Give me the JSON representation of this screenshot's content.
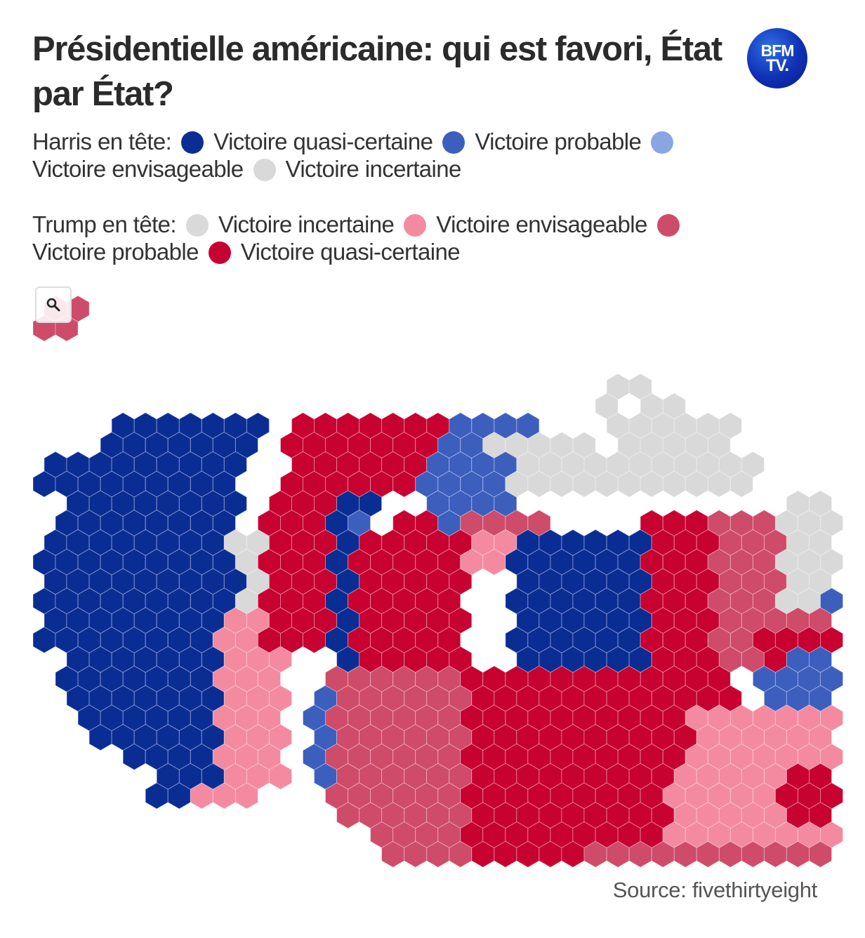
{
  "header": {
    "title": "Présidentielle américaine: qui est favori, État par État?",
    "logo_line1": "BFM",
    "logo_line2": "TV."
  },
  "legend": {
    "harris": {
      "lead_label": "Harris en tête:",
      "items": [
        {
          "label": "Victoire quasi-certaine",
          "color": "#0a2d94"
        },
        {
          "label": "Victoire probable",
          "color": "#3c5fbe"
        },
        {
          "label": "Victoire envisageable",
          "color": "#8aa6e2"
        },
        {
          "label": "Victoire incertaine",
          "color": "#d9d9d9"
        }
      ]
    },
    "trump": {
      "lead_label": "Trump en tête:",
      "items": [
        {
          "label": "Victoire incertaine",
          "color": "#d9d9d9"
        },
        {
          "label": "Victoire envisageable",
          "color": "#f48aa0"
        },
        {
          "label": "Victoire probable",
          "color": "#cf4b6a"
        },
        {
          "label": "Victoire quasi-certaine",
          "color": "#c70231"
        }
      ]
    }
  },
  "map": {
    "zoom_icon": "magnifier-icon",
    "hex_outline_color": "#404040",
    "hex_inner_line_color": "#ffffff"
  },
  "footer": {
    "source": "Source: fivethirtyeight"
  }
}
